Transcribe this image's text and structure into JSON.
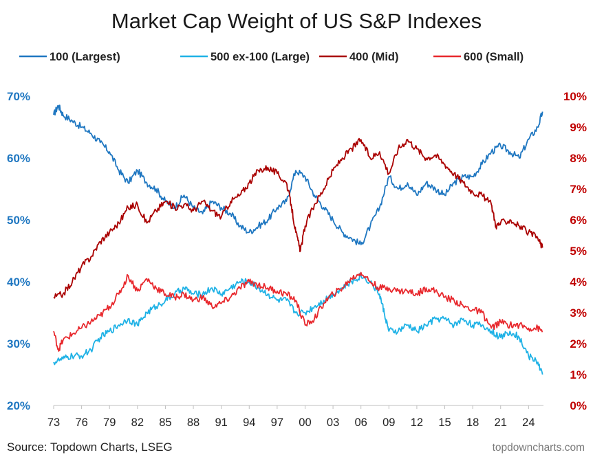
{
  "chart_data": {
    "type": "line",
    "title": "Market Cap Weight of US S&P Indexes",
    "source": "Source: Topdown Charts, LSEG",
    "watermark": "topdowncharts.com",
    "legend_placement": "top",
    "grid": false,
    "x_ticks": [
      "73",
      "76",
      "79",
      "82",
      "85",
      "88",
      "91",
      "94",
      "97",
      "00",
      "03",
      "06",
      "09",
      "12",
      "15",
      "18",
      "21",
      "24"
    ],
    "x_range": [
      1973,
      2025.6
    ],
    "y_left": {
      "ticks": [
        "20%",
        "30%",
        "40%",
        "50%",
        "60%",
        "70%"
      ],
      "range": [
        20,
        70
      ],
      "color": "#1f77c1"
    },
    "y_right": {
      "ticks": [
        "0%",
        "1%",
        "2%",
        "3%",
        "4%",
        "5%",
        "6%",
        "7%",
        "8%",
        "9%",
        "10%"
      ],
      "range": [
        0,
        10
      ],
      "color": "#c00000"
    },
    "series": [
      {
        "name": "100 (Largest)",
        "axis": "left",
        "color": "#1f77c1",
        "x": [
          1973,
          1973.5,
          1974,
          1975,
          1976,
          1977,
          1978,
          1979,
          1980,
          1981,
          1982,
          1983,
          1984,
          1985,
          1986,
          1987,
          1988,
          1989,
          1990,
          1991,
          1992,
          1993,
          1994,
          1995,
          1996,
          1997,
          1998,
          1999,
          2000,
          2001,
          2002,
          2003,
          2004,
          2005,
          2006,
          2007,
          2008,
          2009,
          2010,
          2011,
          2012,
          2013,
          2014,
          2015,
          2016,
          2017,
          2018,
          2019,
          2020,
          2021,
          2022,
          2023,
          2024,
          2025,
          2025.5
        ],
        "values": [
          67,
          68.5,
          67,
          66,
          65,
          64,
          62.5,
          61,
          58,
          56,
          58,
          56,
          55,
          53,
          52,
          54,
          52,
          51,
          53,
          52,
          51,
          49,
          48,
          49,
          50,
          52,
          53,
          58,
          57,
          54,
          52,
          50,
          48,
          47,
          46,
          49,
          52,
          57,
          55,
          56,
          54,
          56,
          55,
          54,
          56,
          57,
          57,
          59,
          61,
          62,
          61,
          60,
          63,
          65,
          67.5
        ]
      },
      {
        "name": "500 ex-100 (Large)",
        "axis": "left",
        "color": "#1fb2e6",
        "x": [
          1973,
          1974,
          1975,
          1976,
          1977,
          1978,
          1979,
          1980,
          1981,
          1982,
          1983,
          1984,
          1985,
          1986,
          1987,
          1988,
          1989,
          1990,
          1991,
          1992,
          1993,
          1994,
          1995,
          1996,
          1997,
          1998,
          1999,
          2000,
          2001,
          2002,
          2003,
          2004,
          2005,
          2006,
          2007,
          2008,
          2008.5,
          2009,
          2010,
          2011,
          2012,
          2013,
          2014,
          2015,
          2016,
          2017,
          2018,
          2019,
          2020,
          2021,
          2022,
          2023,
          2024,
          2025,
          2025.5
        ],
        "values": [
          27,
          27.5,
          28,
          28,
          29,
          31,
          32,
          33,
          34,
          33,
          35,
          36,
          37,
          38,
          39,
          38,
          38,
          39,
          38,
          39,
          40,
          40,
          39,
          38,
          37,
          37,
          35,
          35,
          36,
          37,
          38,
          39,
          40,
          41,
          40,
          38,
          35,
          32,
          32,
          33,
          32,
          33,
          34,
          34,
          33,
          34,
          33,
          33,
          32,
          31,
          32,
          31,
          28,
          27,
          25
        ]
      },
      {
        "name": "400 (Mid)",
        "axis": "right",
        "color": "#aa0000",
        "x": [
          1973,
          1974,
          1975,
          1976,
          1977,
          1978,
          1979,
          1980,
          1981,
          1982,
          1983,
          1984,
          1985,
          1986,
          1987,
          1988,
          1989,
          1990,
          1991,
          1992,
          1993,
          1994,
          1995,
          1996,
          1997,
          1998,
          1998.5,
          1999,
          1999.5,
          2000,
          2001,
          2002,
          2003,
          2004,
          2005,
          2006,
          2007,
          2008,
          2009,
          2010,
          2011,
          2012,
          2013,
          2014,
          2015,
          2016,
          2017,
          2018,
          2019,
          2020,
          2020.5,
          2021,
          2022,
          2023,
          2024,
          2025,
          2025.5
        ],
        "values": [
          3.5,
          3.6,
          4.0,
          4.5,
          4.8,
          5.3,
          5.6,
          5.9,
          6.4,
          6.5,
          5.9,
          6.3,
          6.6,
          6.4,
          6.5,
          6.3,
          6.6,
          6.3,
          6.1,
          6.6,
          6.8,
          7.2,
          7.6,
          7.7,
          7.5,
          7.2,
          6.5,
          5.6,
          5.0,
          5.8,
          6.5,
          7.0,
          7.6,
          8.0,
          8.3,
          8.6,
          8.0,
          8.2,
          7.5,
          8.3,
          8.6,
          8.3,
          8.0,
          8.1,
          7.8,
          7.5,
          7.2,
          6.9,
          6.8,
          6.5,
          5.8,
          5.9,
          6.0,
          5.8,
          5.6,
          5.4,
          5.1
        ]
      },
      {
        "name": "600 (Small)",
        "axis": "right",
        "color": "#e8282d",
        "x": [
          1973,
          1973.5,
          1974,
          1975,
          1976,
          1977,
          1978,
          1979,
          1980,
          1981,
          1982,
          1983,
          1984,
          1985,
          1986,
          1987,
          1988,
          1989,
          1990,
          1991,
          1992,
          1993,
          1994,
          1995,
          1996,
          1997,
          1998,
          1999,
          2000,
          2001,
          2002,
          2003,
          2004,
          2005,
          2006,
          2007,
          2008,
          2009,
          2010,
          2011,
          2012,
          2013,
          2014,
          2015,
          2016,
          2017,
          2018,
          2019,
          2020,
          2021,
          2022,
          2023,
          2024,
          2025,
          2025.5
        ],
        "values": [
          2.4,
          1.8,
          2.1,
          2.3,
          2.5,
          2.7,
          2.9,
          3.2,
          3.6,
          4.2,
          3.7,
          4.1,
          3.8,
          3.6,
          3.5,
          3.6,
          3.4,
          3.5,
          3.2,
          3.3,
          3.5,
          3.8,
          4.0,
          3.9,
          3.8,
          3.7,
          3.6,
          3.4,
          2.6,
          2.8,
          3.3,
          3.6,
          3.8,
          4.1,
          4.3,
          4.0,
          3.8,
          3.8,
          3.7,
          3.7,
          3.6,
          3.8,
          3.7,
          3.5,
          3.4,
          3.2,
          3.1,
          3.0,
          2.5,
          2.7,
          2.6,
          2.6,
          2.5,
          2.5,
          2.4
        ]
      }
    ]
  }
}
